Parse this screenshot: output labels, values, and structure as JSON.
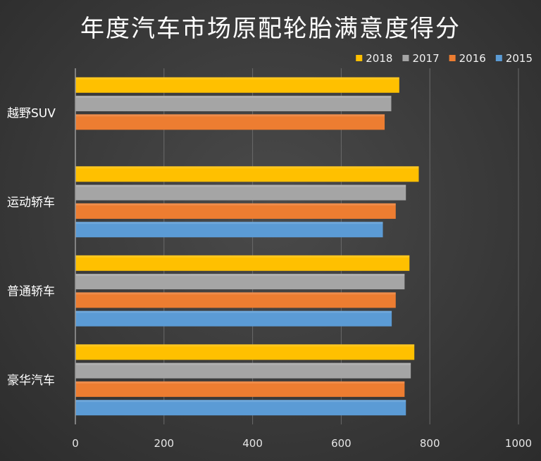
{
  "chart_data": {
    "type": "bar",
    "orientation": "horizontal",
    "title": "年度汽车市场原配轮胎满意度得分",
    "categories": [
      "越野SUV",
      "运动轿车",
      "普通轿车",
      "豪华汽车"
    ],
    "series": [
      {
        "name": "2018",
        "color": "#FFC000",
        "values": [
          731,
          775,
          754,
          765
        ]
      },
      {
        "name": "2017",
        "color": "#A5A5A5",
        "values": [
          713,
          746,
          743,
          757
        ]
      },
      {
        "name": "2016",
        "color": "#ED7D31",
        "values": [
          698,
          723,
          723,
          743
        ]
      },
      {
        "name": "2015",
        "color": "#5B9BD5",
        "values": [
          null,
          694,
          714,
          746
        ]
      }
    ],
    "xlim": [
      0,
      1000
    ],
    "xticks": [
      0,
      200,
      400,
      600,
      800,
      1000
    ],
    "grid": true,
    "legend_position": "top-right"
  }
}
